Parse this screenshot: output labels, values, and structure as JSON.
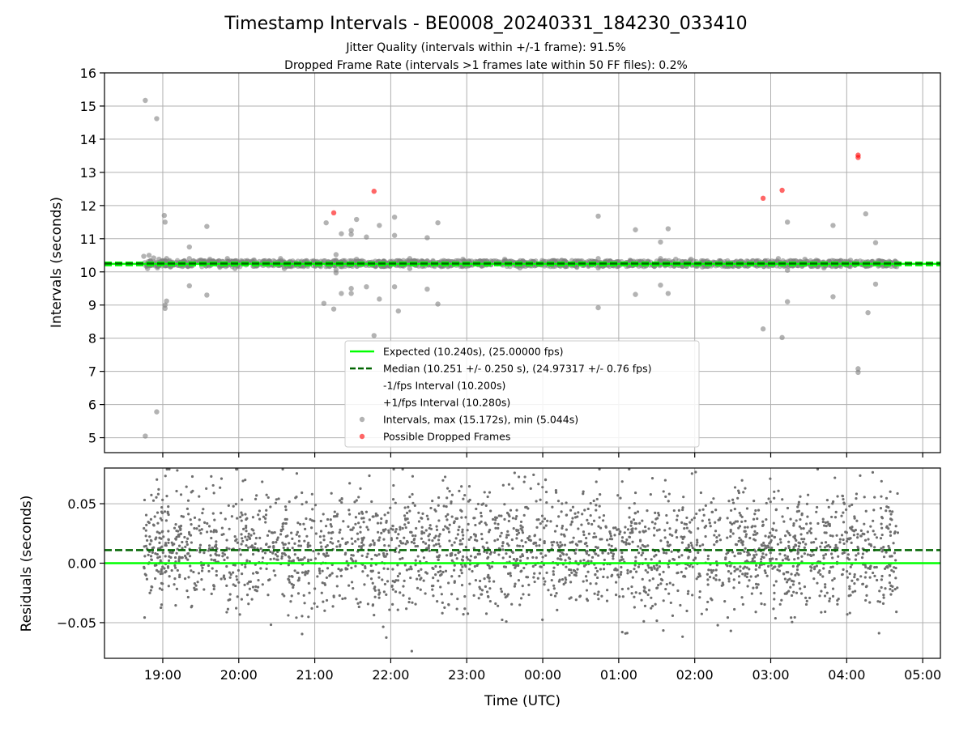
{
  "figure": {
    "title": "Timestamp Intervals - BE0008_20240331_184230_033410",
    "subtitle_1": "Jitter Quality (intervals within +/-1 frame): 91.5%",
    "subtitle_2": "Dropped Frame Rate (intervals >1 frames late within 50 FF files): 0.2%"
  },
  "colors": {
    "expected": "#00ff00",
    "median": "#006400",
    "fps_interval": "#00ff00",
    "intervals": "#808080",
    "dropped": "#ff0000",
    "grid": "#b0b0b0"
  },
  "chart_data": [
    {
      "type": "scatter",
      "panel": "intervals",
      "ylabel": "Intervals (seconds)",
      "ylim": [
        4.55,
        16
      ],
      "yticks": [
        5,
        6,
        7,
        8,
        9,
        10,
        11,
        12,
        13,
        14,
        15,
        16
      ],
      "x_range_hours": [
        18.233,
        29.233
      ],
      "x_ticks": [
        "19:00",
        "20:00",
        "21:00",
        "22:00",
        "23:00",
        "00:00",
        "01:00",
        "02:00",
        "03:00",
        "04:00",
        "05:00"
      ],
      "x_tick_hours": [
        19,
        20,
        21,
        22,
        23,
        24,
        25,
        26,
        27,
        28,
        29
      ],
      "grid": true,
      "legend_position": "lower-center",
      "lines": {
        "expected": 10.24,
        "median": 10.251,
        "minus_fps": 10.2,
        "plus_fps": 10.28
      },
      "legend": [
        {
          "key": "expected",
          "label": "Expected (10.240s), (25.00000 fps)",
          "style": "solid"
        },
        {
          "key": "median",
          "label": "Median (10.251 +/- 0.250 s), (24.97317 +/- 0.76 fps)",
          "style": "dashed"
        },
        {
          "key": "minus_fps",
          "label": "-1/fps Interval (10.200s)",
          "style": "dashed"
        },
        {
          "key": "plus_fps",
          "label": "+1/fps Interval (10.280s)",
          "style": "dashed"
        },
        {
          "key": "intervals",
          "label": "Intervals, max (15.172s), min (5.044s)",
          "style": "point"
        },
        {
          "key": "dropped",
          "label": "Possible Dropped Frames",
          "style": "point"
        }
      ],
      "series": [
        {
          "name": "Intervals, max (15.172s), min (5.044s)",
          "points": [
            [
              18.77,
              15.17
            ],
            [
              18.92,
              14.62
            ],
            [
              18.77,
              5.05
            ],
            [
              18.92,
              5.78
            ],
            [
              19.02,
              11.7
            ],
            [
              19.03,
              11.5
            ],
            [
              19.05,
              9.12
            ],
            [
              19.03,
              8.9
            ],
            [
              19.03,
              9.0
            ],
            [
              18.75,
              10.47
            ],
            [
              18.82,
              10.5
            ],
            [
              18.88,
              10.42
            ],
            [
              18.95,
              10.38
            ],
            [
              19.05,
              10.4
            ],
            [
              18.8,
              10.1
            ],
            [
              18.93,
              10.12
            ],
            [
              19.1,
              10.15
            ],
            [
              19.35,
              10.75
            ],
            [
              19.35,
              9.58
            ],
            [
              19.35,
              10.4
            ],
            [
              19.58,
              11.37
            ],
            [
              19.58,
              9.3
            ],
            [
              19.5,
              10.36
            ],
            [
              19.62,
              10.38
            ],
            [
              19.75,
              10.14
            ],
            [
              19.85,
              10.4
            ],
            [
              19.95,
              10.1
            ],
            [
              20.2,
              10.36
            ],
            [
              20.55,
              10.4
            ],
            [
              20.6,
              10.1
            ],
            [
              21.15,
              11.48
            ],
            [
              21.12,
              9.05
            ],
            [
              21.28,
              10.52
            ],
            [
              21.28,
              10.35
            ],
            [
              21.28,
              10.06
            ],
            [
              21.28,
              9.97
            ],
            [
              21.25,
              8.88
            ],
            [
              21.35,
              11.15
            ],
            [
              21.35,
              9.35
            ],
            [
              21.48,
              11.25
            ],
            [
              21.48,
              11.13
            ],
            [
              21.48,
              9.5
            ],
            [
              21.48,
              9.35
            ],
            [
              21.55,
              11.58
            ],
            [
              21.55,
              10.38
            ],
            [
              21.68,
              11.05
            ],
            [
              21.68,
              9.55
            ],
            [
              21.78,
              8.08
            ],
            [
              21.85,
              11.4
            ],
            [
              21.85,
              9.18
            ],
            [
              22.05,
              11.65
            ],
            [
              22.05,
              11.1
            ],
            [
              22.05,
              9.55
            ],
            [
              22.1,
              8.82
            ],
            [
              22.25,
              10.4
            ],
            [
              22.25,
              10.1
            ],
            [
              22.48,
              11.03
            ],
            [
              22.48,
              9.48
            ],
            [
              22.62,
              11.48
            ],
            [
              22.62,
              9.03
            ],
            [
              22.95,
              10.38
            ],
            [
              23.5,
              10.38
            ],
            [
              23.7,
              10.12
            ],
            [
              24.25,
              10.35
            ],
            [
              24.45,
              10.14
            ],
            [
              24.73,
              11.68
            ],
            [
              24.73,
              8.92
            ],
            [
              24.73,
              10.4
            ],
            [
              24.73,
              10.12
            ],
            [
              25.15,
              10.35
            ],
            [
              25.22,
              11.27
            ],
            [
              25.22,
              9.32
            ],
            [
              25.55,
              10.9
            ],
            [
              25.55,
              9.6
            ],
            [
              25.55,
              10.4
            ],
            [
              25.65,
              11.3
            ],
            [
              25.65,
              9.35
            ],
            [
              25.75,
              10.38
            ],
            [
              25.95,
              10.38
            ],
            [
              26.1,
              10.15
            ],
            [
              26.9,
              8.28
            ],
            [
              27.1,
              10.4
            ],
            [
              27.15,
              8.02
            ],
            [
              27.22,
              11.5
            ],
            [
              27.22,
              9.1
            ],
            [
              27.22,
              10.05
            ],
            [
              27.45,
              10.38
            ],
            [
              27.6,
              10.35
            ],
            [
              27.7,
              10.12
            ],
            [
              27.82,
              11.4
            ],
            [
              27.82,
              9.25
            ],
            [
              28.05,
              10.35
            ],
            [
              28.15,
              7.08
            ],
            [
              28.15,
              6.97
            ],
            [
              28.25,
              11.75
            ],
            [
              28.28,
              8.77
            ],
            [
              28.38,
              10.88
            ],
            [
              28.38,
              9.63
            ],
            [
              28.45,
              10.3
            ]
          ]
        },
        {
          "name": "Possible Dropped Frames",
          "points": [
            [
              21.25,
              11.78
            ],
            [
              21.78,
              12.43
            ],
            [
              26.9,
              12.22
            ],
            [
              27.15,
              12.46
            ],
            [
              28.15,
              13.52
            ],
            [
              28.15,
              13.45
            ]
          ]
        }
      ],
      "dense_band": {
        "x_from": 18.75,
        "x_to": 28.68,
        "y_low": 10.16,
        "y_high": 10.34
      }
    },
    {
      "type": "scatter",
      "panel": "residuals",
      "xlabel": "Time (UTC)",
      "ylabel": "Residuals (seconds)",
      "ylim": [
        -0.08,
        0.08
      ],
      "yticks": [
        0.05,
        0.0,
        -0.05
      ],
      "ytick_labels": [
        "0.05",
        "0.00",
        "−0.05"
      ],
      "x_range_hours": [
        18.233,
        29.233
      ],
      "grid": true,
      "lines": {
        "expected": 0.0,
        "median": 0.011
      },
      "residual_summary": {
        "x_from": 18.75,
        "x_to": 28.68,
        "center": 0.011,
        "spread": 0.025,
        "extreme_min": -0.077,
        "extreme_max": 0.079
      }
    }
  ]
}
